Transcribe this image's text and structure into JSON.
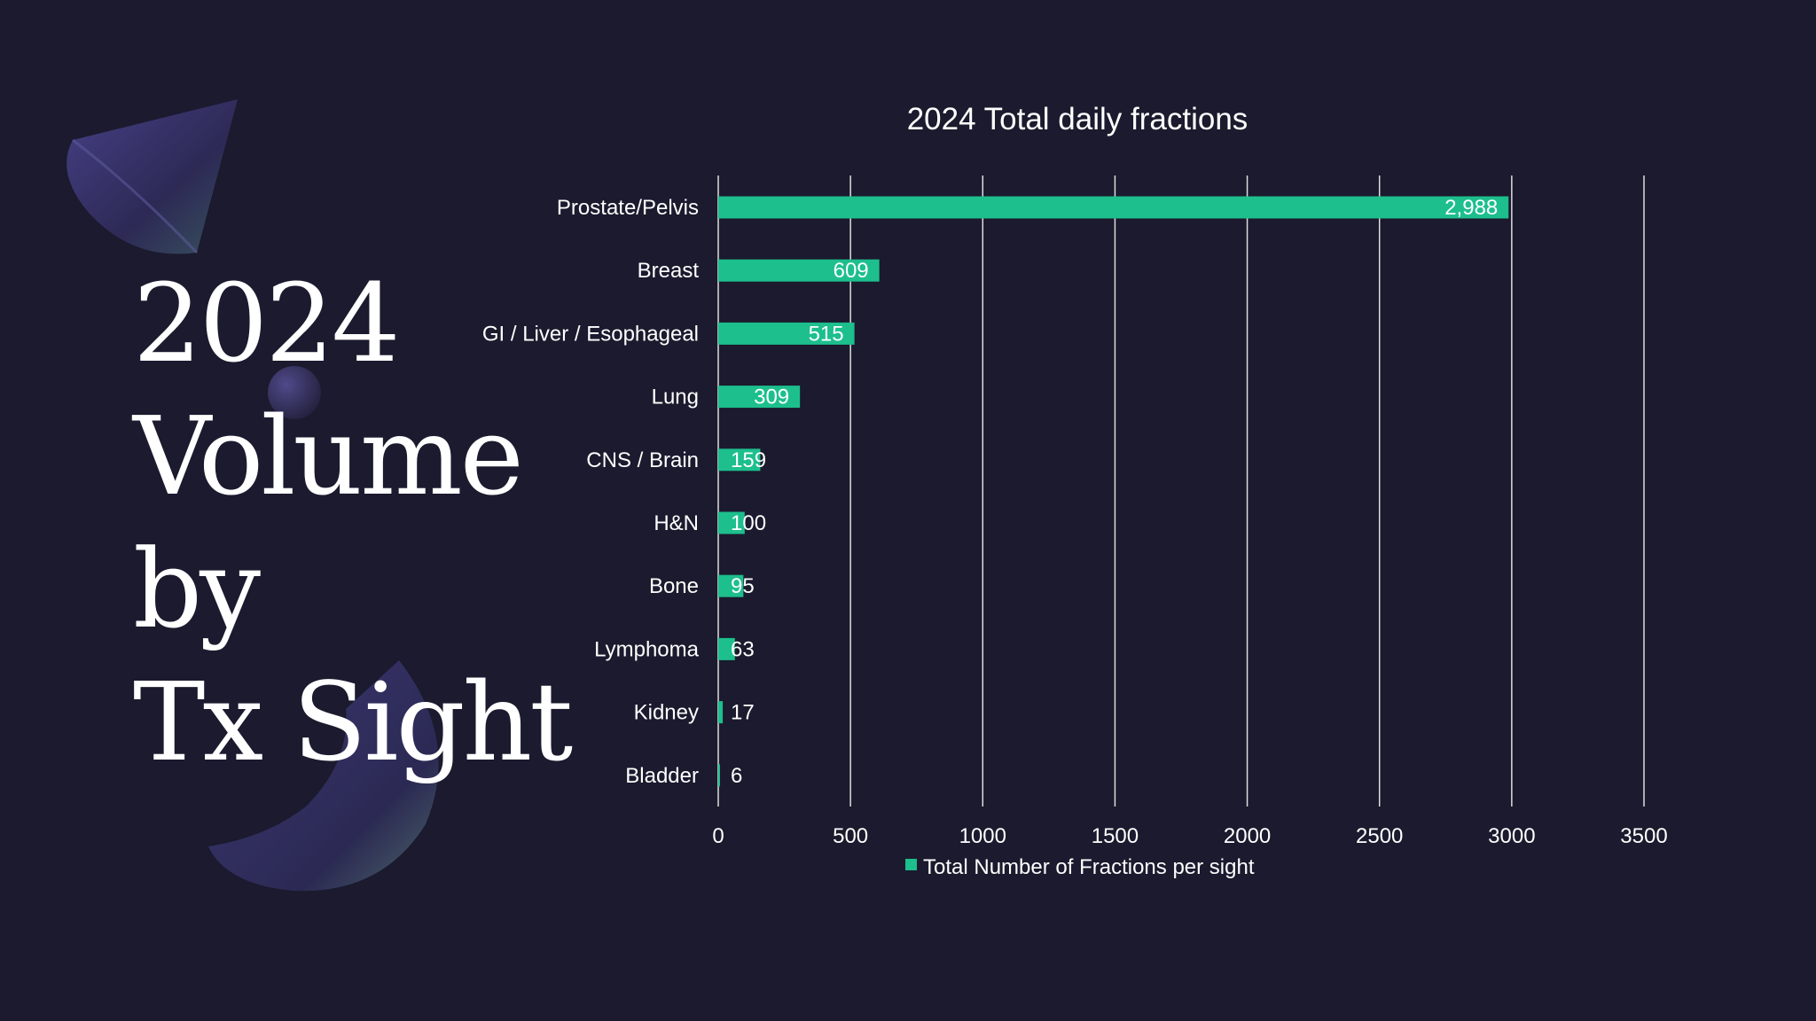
{
  "slide": {
    "headline_lines": [
      "2024",
      "Volume",
      "by",
      "Tx Sight"
    ]
  },
  "colors": {
    "background": "#1b1a2e",
    "bar": "#1dbf8c",
    "text": "#ffffff",
    "gridline": "#ffffff"
  },
  "chart_data": {
    "type": "bar",
    "orientation": "horizontal",
    "title": "2024  Total daily fractions",
    "categories": [
      "Prostate/Pelvis",
      "Breast",
      "GI / Liver / Esophageal",
      "Lung",
      "CNS / Brain",
      "H&N",
      "Bone",
      "Lymphoma",
      "Kidney",
      "Bladder"
    ],
    "series": [
      {
        "name": "Total Number of Fractions per sight",
        "values": [
          2988,
          609,
          515,
          309,
          159,
          100,
          95,
          63,
          17,
          6
        ],
        "labels": [
          "2,988",
          "609",
          "515",
          "309",
          "159",
          "100",
          "95",
          "63",
          "17",
          "6"
        ]
      }
    ],
    "x_ticks": [
      "0",
      "500",
      "1000",
      "1500",
      "2000",
      "2500",
      "3000",
      "3500"
    ],
    "xlim": [
      0,
      3500
    ],
    "grid": "vertical",
    "legend_position": "bottom"
  }
}
